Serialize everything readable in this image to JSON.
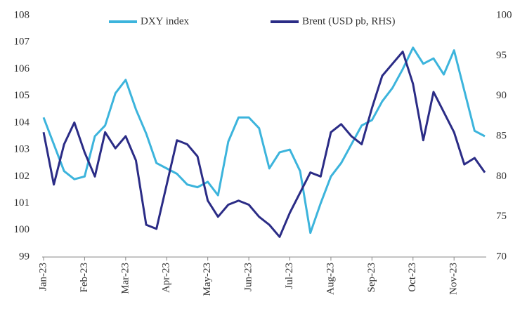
{
  "chart_data": {
    "type": "line",
    "categories": [
      "Jan-23",
      null,
      null,
      null,
      "Feb-23",
      null,
      null,
      null,
      "Mar-23",
      null,
      null,
      null,
      "Apr-23",
      null,
      null,
      null,
      "May-23",
      null,
      null,
      null,
      "Jun-23",
      null,
      null,
      null,
      "Jul-23",
      null,
      null,
      null,
      "Aug-23",
      null,
      null,
      null,
      "Sep-23",
      null,
      null,
      null,
      "Oct-23",
      null,
      null,
      null,
      "Nov-23",
      null,
      null,
      null
    ],
    "series": [
      {
        "name": "DXY index",
        "color": "#3cb4dc",
        "axis": "y",
        "values": [
          104.2,
          103.2,
          102.2,
          101.9,
          102.0,
          103.5,
          103.9,
          105.1,
          105.6,
          104.5,
          103.6,
          102.5,
          102.3,
          102.1,
          101.7,
          101.6,
          101.8,
          101.3,
          103.3,
          104.2,
          104.2,
          103.8,
          102.3,
          102.9,
          103.0,
          102.2,
          99.9,
          101.0,
          102.0,
          102.5,
          103.2,
          103.9,
          104.1,
          104.8,
          105.3,
          106.0,
          106.8,
          106.2,
          106.4,
          105.8,
          106.7,
          105.2,
          103.7,
          103.5
        ]
      },
      {
        "name": "Brent (USD pb, RHS)",
        "color": "#2b2c86",
        "axis": "y2",
        "values": [
          85.5,
          79,
          84.0,
          86.7,
          83,
          80,
          85.5,
          83.5,
          85.0,
          82,
          74,
          73.5,
          79,
          84.5,
          84,
          82.5,
          77,
          75,
          76.5,
          77,
          76.5,
          75,
          74,
          72.5,
          75.5,
          78,
          80.5,
          80,
          85.5,
          86.5,
          85,
          84,
          88.5,
          92.5,
          94,
          95.5,
          91.5,
          84.5,
          90.5,
          88,
          85.5,
          81.5,
          82.3,
          80.5
        ]
      }
    ],
    "ylim": [
      99,
      108
    ],
    "yticks": [
      99,
      100,
      101,
      102,
      103,
      104,
      105,
      106,
      107,
      108
    ],
    "y2lim": [
      70,
      100
    ],
    "y2ticks": [
      70,
      75,
      80,
      85,
      90,
      95,
      100
    ],
    "grid": false
  }
}
